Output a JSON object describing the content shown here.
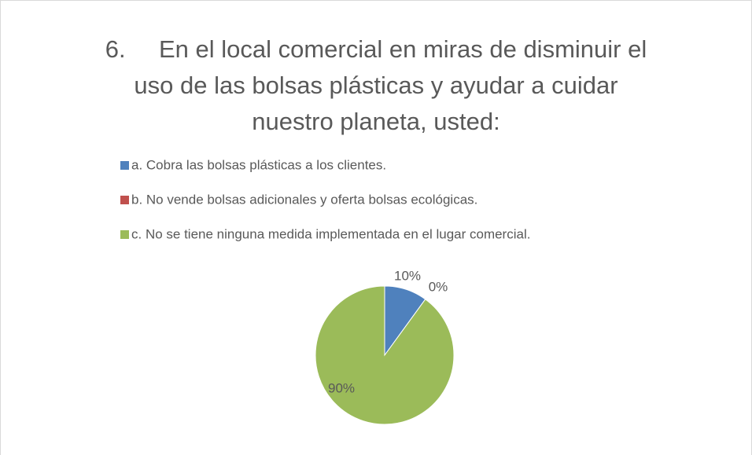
{
  "chart_data": {
    "type": "pie",
    "title": "6.\tEn el local comercial en miras de disminuir el uso de las bolsas plásticas y ayudar a cuidar nuestro planeta, usted:",
    "categories": [
      "a. Cobra las bolsas plásticas a los clientes.",
      "b. No vende bolsas adicionales y oferta bolsas ecológicas.",
      "c. No se tiene ninguna medida implementada en el lugar comercial."
    ],
    "values": [
      10,
      0,
      90
    ],
    "value_labels": [
      "10%",
      "0%",
      "90%"
    ],
    "colors": [
      "#4f81bd",
      "#c0504d",
      "#9bbb59"
    ],
    "legend": "top"
  }
}
